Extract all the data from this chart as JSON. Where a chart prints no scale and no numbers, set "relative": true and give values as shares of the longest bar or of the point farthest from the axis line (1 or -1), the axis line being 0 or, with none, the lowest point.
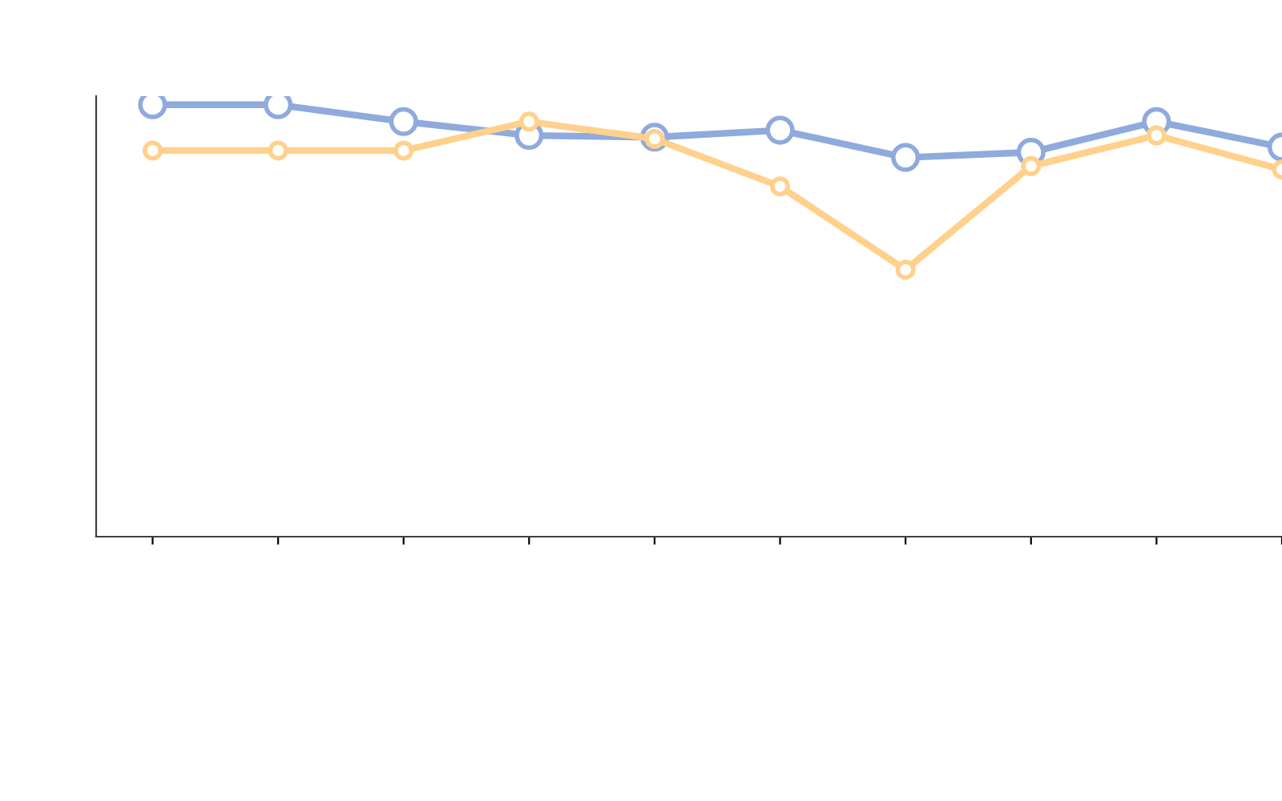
{
  "chart_data": {
    "type": "line",
    "relative": true,
    "marker": "circle",
    "line_style": "solid",
    "categories": [
      null,
      null,
      null,
      null,
      null,
      null,
      null,
      null,
      null,
      null
    ],
    "series": [
      {
        "color": "#8faadc",
        "values": [
          1,
          1,
          0.961,
          0.929,
          0.925,
          0.941,
          0.878,
          0.89,
          0.961,
          0.902
        ]
      },
      {
        "color": "#ffd18c",
        "values": [
          0.894,
          0.894,
          0.894,
          0.961,
          0.921,
          0.811,
          0.618,
          0.858,
          0.929,
          0.85
        ]
      }
    ]
  }
}
